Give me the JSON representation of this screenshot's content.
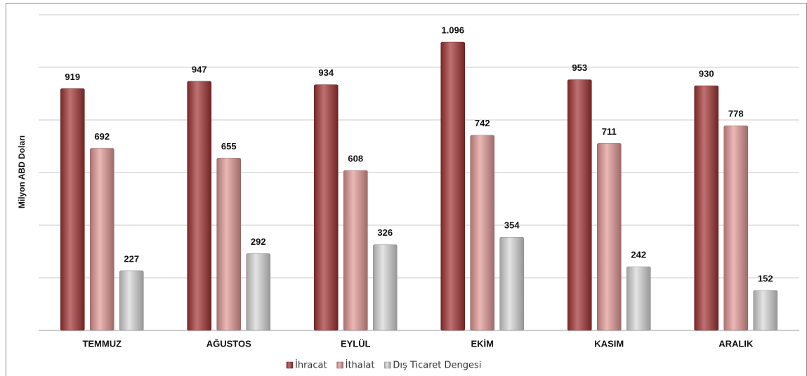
{
  "chart_data": {
    "type": "bar",
    "y_label": "Milyon ABD Doları",
    "categories": [
      "TEMMUZ",
      "AĞUSTOS",
      "EYLÜL",
      "EKİM",
      "KASIM",
      "ARALIK"
    ],
    "series": [
      {
        "name": "İhracat",
        "color": "#a33434",
        "values": [
          919,
          947,
          934,
          1096,
          953,
          930
        ],
        "value_labels": [
          "919",
          "947",
          "934",
          "1.096",
          "953",
          "930"
        ]
      },
      {
        "name": "İthalat",
        "color": "#e39996",
        "values": [
          692,
          655,
          608,
          742,
          711,
          778
        ]
      },
      {
        "name": "Dış Ticaret Dengesi",
        "color": "#d8d8d8",
        "values": [
          227,
          292,
          326,
          354,
          242,
          152
        ]
      }
    ],
    "ylim": [
      0,
      1200
    ],
    "yticks": [
      0,
      200,
      400,
      600,
      800,
      1000,
      1200
    ],
    "grid": true,
    "legend": "bottom"
  }
}
